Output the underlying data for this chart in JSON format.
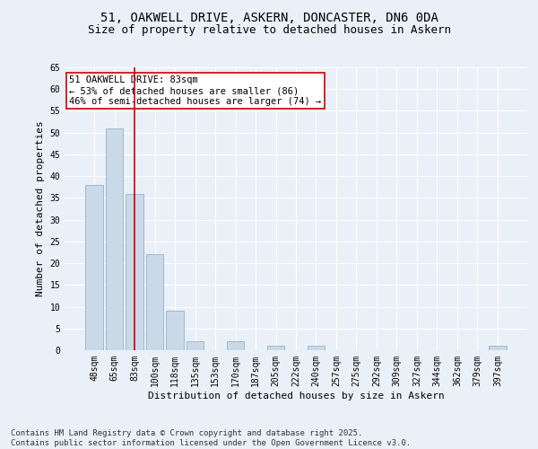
{
  "title_line1": "51, OAKWELL DRIVE, ASKERN, DONCASTER, DN6 0DA",
  "title_line2": "Size of property relative to detached houses in Askern",
  "xlabel": "Distribution of detached houses by size in Askern",
  "ylabel": "Number of detached properties",
  "categories": [
    "48sqm",
    "65sqm",
    "83sqm",
    "100sqm",
    "118sqm",
    "135sqm",
    "153sqm",
    "170sqm",
    "187sqm",
    "205sqm",
    "222sqm",
    "240sqm",
    "257sqm",
    "275sqm",
    "292sqm",
    "309sqm",
    "327sqm",
    "344sqm",
    "362sqm",
    "379sqm",
    "397sqm"
  ],
  "values": [
    38,
    51,
    36,
    22,
    9,
    2,
    0,
    2,
    0,
    1,
    0,
    1,
    0,
    0,
    0,
    0,
    0,
    0,
    0,
    0,
    1
  ],
  "bar_color": "#c9d9e8",
  "bar_edgecolor": "#a0b8cc",
  "highlight_index": 2,
  "highlight_line_color": "#cc0000",
  "annotation_text": "51 OAKWELL DRIVE: 83sqm\n← 53% of detached houses are smaller (86)\n46% of semi-detached houses are larger (74) →",
  "annotation_box_edgecolor": "#cc0000",
  "annotation_box_facecolor": "#ffffff",
  "ylim": [
    0,
    65
  ],
  "yticks": [
    0,
    5,
    10,
    15,
    20,
    25,
    30,
    35,
    40,
    45,
    50,
    55,
    60,
    65
  ],
  "background_color": "#eaf0f8",
  "plot_background_color": "#eaf0f8",
  "grid_color": "#ffffff",
  "footer_text": "Contains HM Land Registry data © Crown copyright and database right 2025.\nContains public sector information licensed under the Open Government Licence v3.0.",
  "title_fontsize": 10,
  "subtitle_fontsize": 9,
  "axis_label_fontsize": 8,
  "tick_fontsize": 7,
  "annotation_fontsize": 7.5,
  "footer_fontsize": 6.5
}
